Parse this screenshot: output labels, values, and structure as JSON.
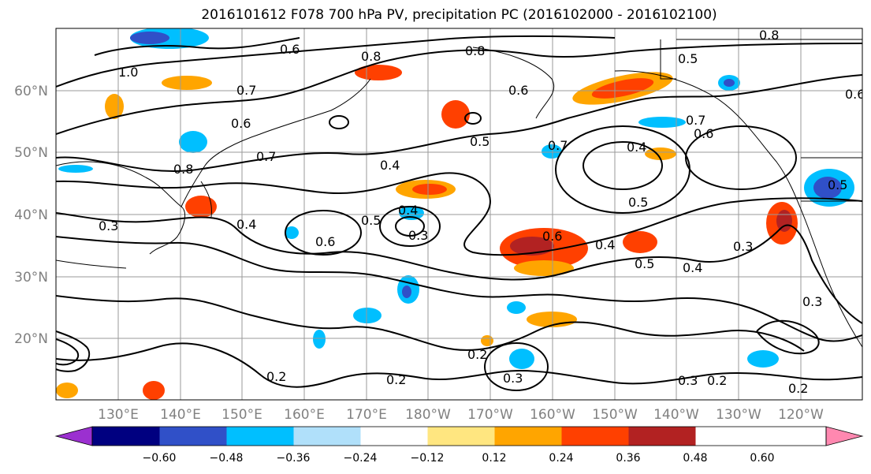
{
  "title": "2016101612 F078 700 hPa PV, precipitation PC (2016102000 - 2016102100)",
  "lat_labels": [
    "60°N",
    "50°N",
    "40°N",
    "30°N",
    "20°N"
  ],
  "lon_labels": [
    "130°E",
    "140°E",
    "150°E",
    "160°E",
    "170°E",
    "180°W",
    "170°W",
    "160°W",
    "150°W",
    "140°W",
    "130°W",
    "120°W"
  ],
  "colorbar": {
    "colors": [
      "#9b30d0",
      "#000080",
      "#3050c8",
      "#00bfff",
      "#b0e0fa",
      "#ffffff",
      "#ffe680",
      "#ffa500",
      "#ff4000",
      "#b22222",
      "#ff88b0"
    ],
    "tick_labels": [
      "−0.60",
      "−0.48",
      "−0.36",
      "−0.24",
      "−0.12",
      "0.12",
      "0.24",
      "0.36",
      "0.48",
      "0.60"
    ]
  },
  "contour_labels": [
    {
      "text": "1.0"
    },
    {
      "text": "0.6"
    },
    {
      "text": "0.8"
    },
    {
      "text": "0.8"
    },
    {
      "text": "0.8"
    },
    {
      "text": "0.7"
    },
    {
      "text": "0.6"
    },
    {
      "text": "0.6"
    },
    {
      "text": "0.5"
    },
    {
      "text": "0.7"
    },
    {
      "text": "0.5"
    },
    {
      "text": "0.7"
    },
    {
      "text": "0.6"
    },
    {
      "text": "0.4"
    },
    {
      "text": "0.8"
    },
    {
      "text": "0.7"
    },
    {
      "text": "0.4"
    },
    {
      "text": "0.5"
    },
    {
      "text": "0.3"
    },
    {
      "text": "0.4"
    },
    {
      "text": "0.6"
    },
    {
      "text": "0.5"
    },
    {
      "text": "0.4"
    },
    {
      "text": "0.3"
    },
    {
      "text": "0.6"
    },
    {
      "text": "0.4"
    },
    {
      "text": "0.5"
    },
    {
      "text": "0.4"
    },
    {
      "text": "0.3"
    },
    {
      "text": "0.3"
    },
    {
      "text": "0.2"
    },
    {
      "text": "0.2"
    },
    {
      "text": "0.2"
    },
    {
      "text": "0.3"
    },
    {
      "text": "0.3"
    },
    {
      "text": "0.2"
    },
    {
      "text": "0.2"
    },
    {
      "text": "0.5"
    },
    {
      "text": "0.6"
    }
  ]
}
